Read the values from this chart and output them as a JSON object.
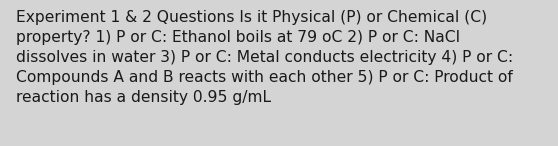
{
  "text": "Experiment 1 & 2 Questions Is it Physical (P) or Chemical (C)\nproperty? 1) P or C: Ethanol boils at 79 oC 2) P or C: NaCl\ndissolves in water 3) P or C: Metal conducts electricity 4) P or C:\nCompounds A and B reacts with each other 5) P or C: Product of\nreaction has a density 0.95 g/mL",
  "background_color": "#d4d4d4",
  "text_color": "#1a1a1a",
  "font_size": 11.2,
  "fig_width": 5.58,
  "fig_height": 1.46,
  "dpi": 100
}
